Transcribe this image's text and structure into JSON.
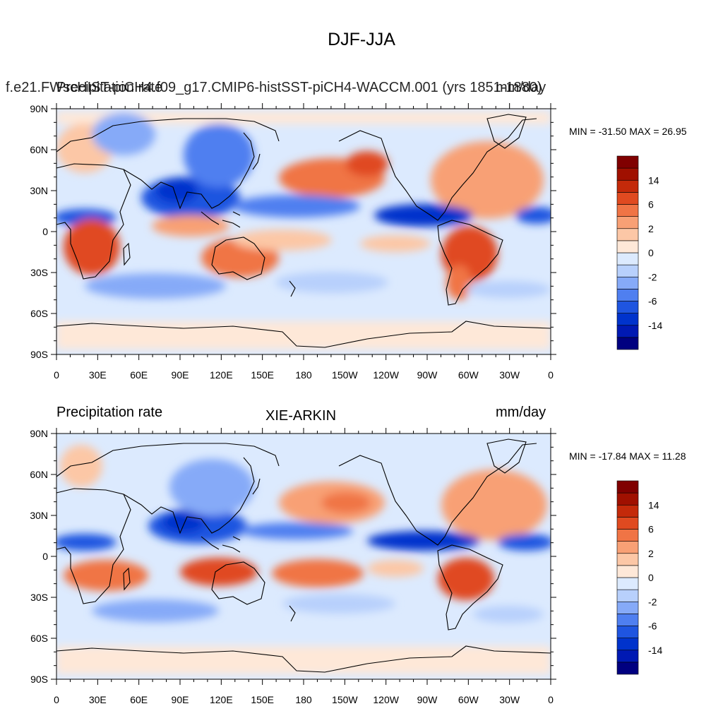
{
  "main_title": "DJF-JJA",
  "colors": [
    "#000080",
    "#0019b3",
    "#0033cc",
    "#1f55e0",
    "#4f7ff0",
    "#86aaf8",
    "#b8d0fc",
    "#dceafe",
    "#fee8d8",
    "#fcc7a6",
    "#f8a075",
    "#f07445",
    "#e04a20",
    "#c42a0a",
    "#a01000",
    "#800000"
  ],
  "panels": [
    {
      "left_title": "Precipitation rate",
      "center_title": "f.e21.FWscHIST-piCH4.f09_g17.CMIP6-histSST-piCH4-WACCM.001 (yrs 1851-1880)",
      "right_title": "mm/day",
      "minmax": "MIN = -31.50 MAX =  26.95",
      "colorbar_labels": [
        "14",
        "6",
        "2",
        "0",
        "-2",
        "-6",
        "-14"
      ]
    },
    {
      "left_title": "Precipitation rate",
      "center_title": "XIE-ARKIN",
      "right_title": "mm/day",
      "minmax": "MIN = -17.84 MAX =  11.28",
      "colorbar_labels": [
        "14",
        "6",
        "2",
        "0",
        "-2",
        "-6",
        "-14"
      ]
    }
  ],
  "x_ticks": [
    "0",
    "30E",
    "60E",
    "90E",
    "120E",
    "150E",
    "180",
    "150W",
    "120W",
    "90W",
    "60W",
    "30W",
    "0"
  ],
  "y_ticks": [
    "90N",
    "60N",
    "30N",
    "0",
    "30S",
    "60S",
    "90S"
  ]
}
